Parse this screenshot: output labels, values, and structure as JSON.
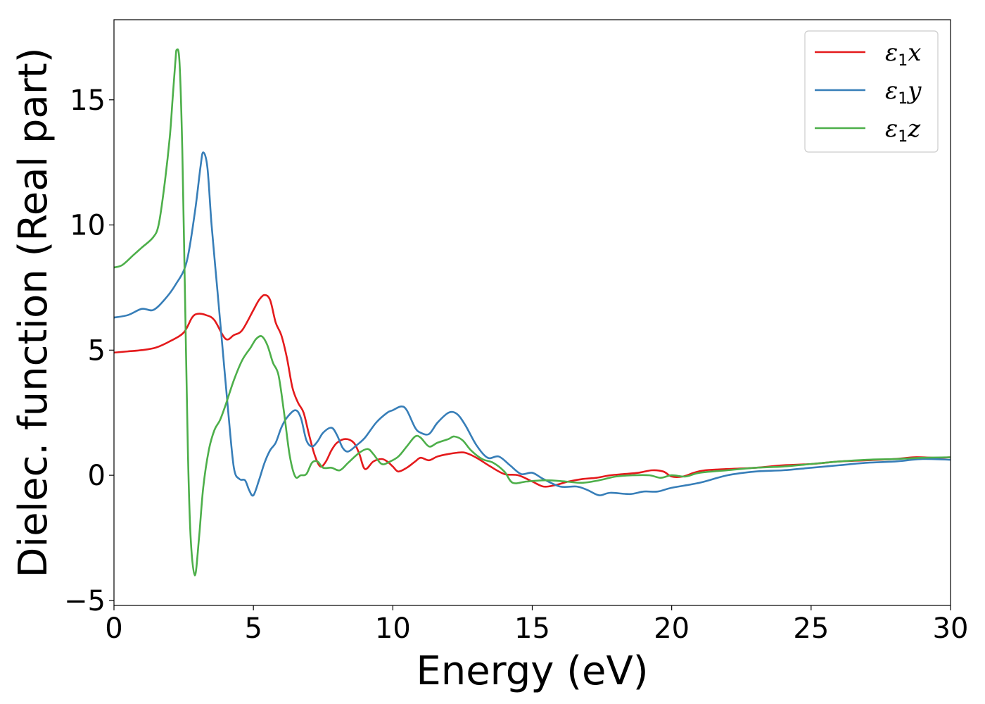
{
  "chart_data": {
    "type": "line",
    "xlabel": "Energy (eV)",
    "ylabel": "Dielec. function (Real part)",
    "xlim": [
      0,
      30
    ],
    "ylim": [
      -5.2,
      18.2
    ],
    "xticks": [
      0,
      5,
      10,
      15,
      20,
      25,
      30
    ],
    "yticks": [
      -5,
      0,
      5,
      10,
      15
    ],
    "grid": false,
    "legend_position": "top-right",
    "series": [
      {
        "name": "ε1x",
        "symbol": "ε",
        "sub": "1",
        "suffix": "x",
        "color": "#e41a1c",
        "points": [
          [
            0,
            4.9
          ],
          [
            0.5,
            4.95
          ],
          [
            1.0,
            5.0
          ],
          [
            1.5,
            5.1
          ],
          [
            2.0,
            5.35
          ],
          [
            2.5,
            5.7
          ],
          [
            2.8,
            6.3
          ],
          [
            3.0,
            6.45
          ],
          [
            3.3,
            6.4
          ],
          [
            3.6,
            6.2
          ],
          [
            4.0,
            5.45
          ],
          [
            4.3,
            5.6
          ],
          [
            4.6,
            5.8
          ],
          [
            5.0,
            6.6
          ],
          [
            5.2,
            7.0
          ],
          [
            5.4,
            7.2
          ],
          [
            5.6,
            7.0
          ],
          [
            5.8,
            6.1
          ],
          [
            6.0,
            5.6
          ],
          [
            6.2,
            4.7
          ],
          [
            6.4,
            3.5
          ],
          [
            6.6,
            2.9
          ],
          [
            6.8,
            2.5
          ],
          [
            7.0,
            1.6
          ],
          [
            7.2,
            0.8
          ],
          [
            7.4,
            0.35
          ],
          [
            7.6,
            0.55
          ],
          [
            7.8,
            1.0
          ],
          [
            8.0,
            1.3
          ],
          [
            8.3,
            1.45
          ],
          [
            8.6,
            1.3
          ],
          [
            8.8,
            0.85
          ],
          [
            9.0,
            0.25
          ],
          [
            9.3,
            0.55
          ],
          [
            9.6,
            0.65
          ],
          [
            9.8,
            0.55
          ],
          [
            10.0,
            0.35
          ],
          [
            10.2,
            0.15
          ],
          [
            10.5,
            0.3
          ],
          [
            10.8,
            0.55
          ],
          [
            11.0,
            0.7
          ],
          [
            11.3,
            0.6
          ],
          [
            11.6,
            0.75
          ],
          [
            12.0,
            0.85
          ],
          [
            12.3,
            0.9
          ],
          [
            12.6,
            0.9
          ],
          [
            13.0,
            0.7
          ],
          [
            13.5,
            0.35
          ],
          [
            14.0,
            0.05
          ],
          [
            14.5,
            0.0
          ],
          [
            15.0,
            -0.25
          ],
          [
            15.4,
            -0.45
          ],
          [
            15.8,
            -0.4
          ],
          [
            16.3,
            -0.25
          ],
          [
            16.8,
            -0.15
          ],
          [
            17.3,
            -0.1
          ],
          [
            17.8,
            0.0
          ],
          [
            18.3,
            0.05
          ],
          [
            18.8,
            0.1
          ],
          [
            19.3,
            0.2
          ],
          [
            19.7,
            0.15
          ],
          [
            20.0,
            -0.05
          ],
          [
            20.4,
            -0.05
          ],
          [
            20.8,
            0.1
          ],
          [
            21.2,
            0.2
          ],
          [
            22.0,
            0.25
          ],
          [
            23.0,
            0.3
          ],
          [
            24.0,
            0.4
          ],
          [
            25.0,
            0.45
          ],
          [
            26.0,
            0.55
          ],
          [
            27.0,
            0.6
          ],
          [
            28.0,
            0.65
          ],
          [
            28.7,
            0.72
          ],
          [
            29.5,
            0.7
          ],
          [
            30.0,
            0.72
          ]
        ]
      },
      {
        "name": "ε1y",
        "symbol": "ε",
        "sub": "1",
        "suffix": "y",
        "color": "#377eb8",
        "points": [
          [
            0,
            6.3
          ],
          [
            0.5,
            6.4
          ],
          [
            1.0,
            6.65
          ],
          [
            1.4,
            6.6
          ],
          [
            1.8,
            7.0
          ],
          [
            2.2,
            7.6
          ],
          [
            2.6,
            8.5
          ],
          [
            2.9,
            10.5
          ],
          [
            3.1,
            12.3
          ],
          [
            3.2,
            12.9
          ],
          [
            3.35,
            12.3
          ],
          [
            3.5,
            10.0
          ],
          [
            3.7,
            7.5
          ],
          [
            3.9,
            5.0
          ],
          [
            4.1,
            2.5
          ],
          [
            4.3,
            0.3
          ],
          [
            4.5,
            -0.15
          ],
          [
            4.7,
            -0.2
          ],
          [
            4.85,
            -0.6
          ],
          [
            5.0,
            -0.8
          ],
          [
            5.2,
            -0.2
          ],
          [
            5.4,
            0.5
          ],
          [
            5.6,
            1.0
          ],
          [
            5.8,
            1.3
          ],
          [
            6.0,
            1.9
          ],
          [
            6.2,
            2.3
          ],
          [
            6.5,
            2.6
          ],
          [
            6.7,
            2.3
          ],
          [
            6.9,
            1.4
          ],
          [
            7.1,
            1.15
          ],
          [
            7.3,
            1.35
          ],
          [
            7.5,
            1.7
          ],
          [
            7.8,
            1.9
          ],
          [
            8.0,
            1.6
          ],
          [
            8.2,
            1.1
          ],
          [
            8.4,
            0.95
          ],
          [
            8.7,
            1.2
          ],
          [
            9.0,
            1.5
          ],
          [
            9.4,
            2.1
          ],
          [
            9.8,
            2.5
          ],
          [
            10.0,
            2.6
          ],
          [
            10.3,
            2.75
          ],
          [
            10.5,
            2.6
          ],
          [
            10.8,
            1.9
          ],
          [
            11.0,
            1.7
          ],
          [
            11.3,
            1.65
          ],
          [
            11.6,
            2.1
          ],
          [
            12.0,
            2.5
          ],
          [
            12.3,
            2.45
          ],
          [
            12.6,
            2.0
          ],
          [
            13.0,
            1.2
          ],
          [
            13.4,
            0.7
          ],
          [
            13.8,
            0.75
          ],
          [
            14.2,
            0.4
          ],
          [
            14.6,
            0.05
          ],
          [
            15.0,
            0.1
          ],
          [
            15.4,
            -0.15
          ],
          [
            16.0,
            -0.45
          ],
          [
            16.6,
            -0.45
          ],
          [
            17.0,
            -0.6
          ],
          [
            17.4,
            -0.8
          ],
          [
            17.8,
            -0.7
          ],
          [
            18.5,
            -0.75
          ],
          [
            19.0,
            -0.65
          ],
          [
            19.5,
            -0.65
          ],
          [
            20.0,
            -0.5
          ],
          [
            21.0,
            -0.3
          ],
          [
            22.0,
            0.0
          ],
          [
            23.0,
            0.15
          ],
          [
            24.0,
            0.2
          ],
          [
            25.0,
            0.3
          ],
          [
            26.0,
            0.4
          ],
          [
            27.0,
            0.5
          ],
          [
            28.0,
            0.55
          ],
          [
            29.0,
            0.65
          ],
          [
            30.0,
            0.62
          ]
        ]
      },
      {
        "name": "ε1z",
        "symbol": "ε",
        "sub": "1",
        "suffix": "z",
        "color": "#4daf4a",
        "points": [
          [
            0,
            8.3
          ],
          [
            0.3,
            8.4
          ],
          [
            0.7,
            8.8
          ],
          [
            1.0,
            9.1
          ],
          [
            1.4,
            9.5
          ],
          [
            1.6,
            10.0
          ],
          [
            1.8,
            11.5
          ],
          [
            2.0,
            13.5
          ],
          [
            2.1,
            15.0
          ],
          [
            2.2,
            16.5
          ],
          [
            2.25,
            17.0
          ],
          [
            2.35,
            16.5
          ],
          [
            2.45,
            13.0
          ],
          [
            2.55,
            7.0
          ],
          [
            2.65,
            1.0
          ],
          [
            2.75,
            -2.5
          ],
          [
            2.9,
            -4.0
          ],
          [
            3.05,
            -2.5
          ],
          [
            3.2,
            -0.5
          ],
          [
            3.4,
            1.0
          ],
          [
            3.6,
            1.8
          ],
          [
            3.8,
            2.2
          ],
          [
            4.0,
            2.8
          ],
          [
            4.3,
            3.8
          ],
          [
            4.6,
            4.6
          ],
          [
            4.9,
            5.1
          ],
          [
            5.1,
            5.45
          ],
          [
            5.3,
            5.55
          ],
          [
            5.5,
            5.2
          ],
          [
            5.7,
            4.5
          ],
          [
            5.9,
            4.0
          ],
          [
            6.1,
            2.5
          ],
          [
            6.3,
            0.8
          ],
          [
            6.5,
            -0.05
          ],
          [
            6.7,
            0.0
          ],
          [
            6.9,
            0.05
          ],
          [
            7.1,
            0.5
          ],
          [
            7.3,
            0.55
          ],
          [
            7.5,
            0.3
          ],
          [
            7.8,
            0.3
          ],
          [
            8.1,
            0.2
          ],
          [
            8.4,
            0.5
          ],
          [
            8.8,
            0.9
          ],
          [
            9.1,
            1.05
          ],
          [
            9.3,
            0.85
          ],
          [
            9.6,
            0.45
          ],
          [
            9.9,
            0.55
          ],
          [
            10.2,
            0.75
          ],
          [
            10.5,
            1.15
          ],
          [
            10.8,
            1.55
          ],
          [
            11.0,
            1.5
          ],
          [
            11.3,
            1.15
          ],
          [
            11.6,
            1.3
          ],
          [
            12.0,
            1.45
          ],
          [
            12.2,
            1.55
          ],
          [
            12.5,
            1.4
          ],
          [
            12.8,
            1.0
          ],
          [
            13.2,
            0.65
          ],
          [
            13.6,
            0.5
          ],
          [
            14.0,
            0.15
          ],
          [
            14.3,
            -0.3
          ],
          [
            14.8,
            -0.25
          ],
          [
            15.5,
            -0.2
          ],
          [
            16.2,
            -0.25
          ],
          [
            16.8,
            -0.3
          ],
          [
            17.4,
            -0.2
          ],
          [
            18.0,
            -0.05
          ],
          [
            18.6,
            0.0
          ],
          [
            19.2,
            0.0
          ],
          [
            19.6,
            -0.1
          ],
          [
            20.0,
            0.0
          ],
          [
            20.5,
            -0.05
          ],
          [
            21.0,
            0.1
          ],
          [
            22.0,
            0.2
          ],
          [
            23.0,
            0.3
          ],
          [
            24.0,
            0.35
          ],
          [
            25.0,
            0.45
          ],
          [
            26.0,
            0.55
          ],
          [
            27.0,
            0.62
          ],
          [
            28.0,
            0.65
          ],
          [
            29.0,
            0.7
          ],
          [
            30.0,
            0.72
          ]
        ]
      }
    ]
  }
}
